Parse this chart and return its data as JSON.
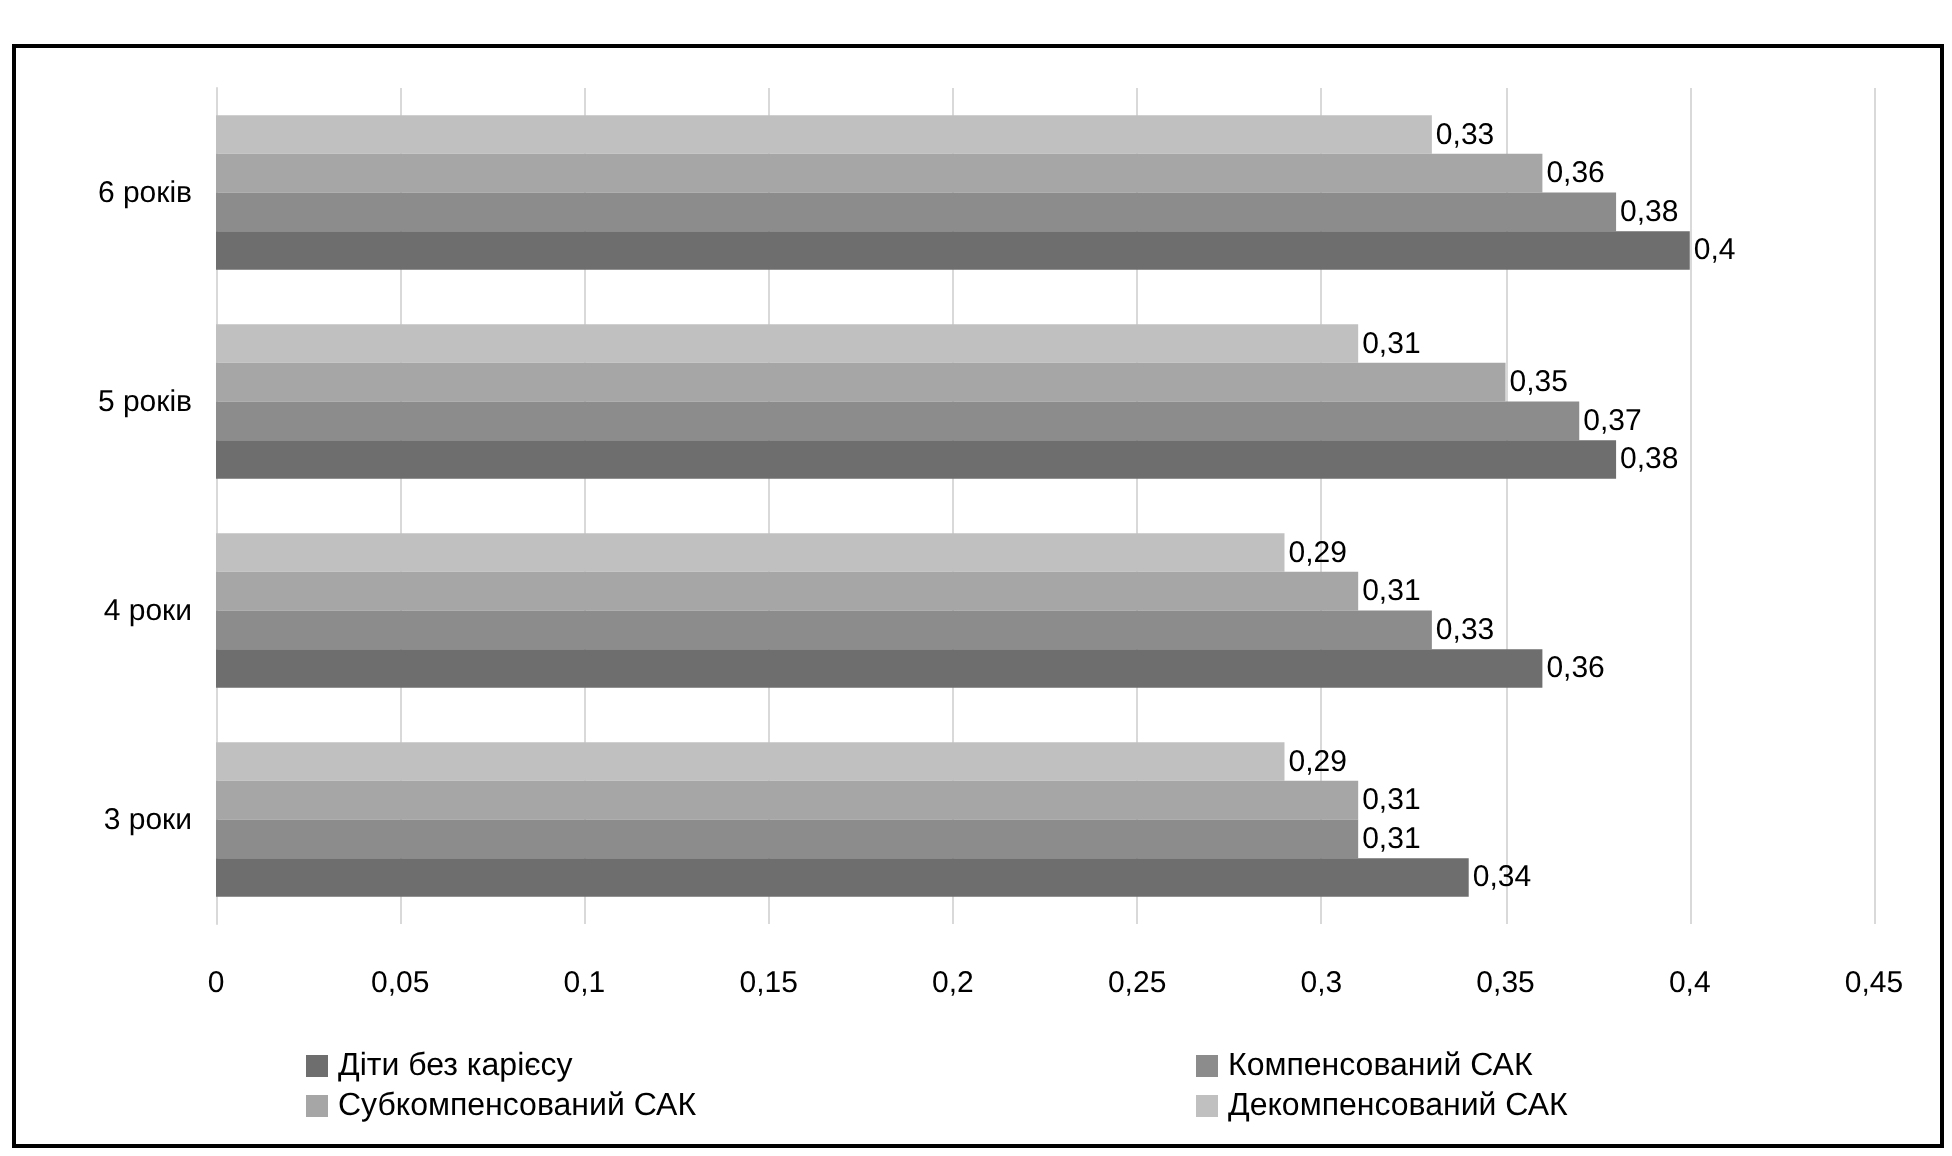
{
  "chart_data": {
    "type": "bar",
    "orientation": "horizontal",
    "categories": [
      "6 років",
      "5 років",
      "4 роки",
      "3 роки"
    ],
    "series": [
      {
        "name": "Діти без карієсу",
        "color": "#6e6e6e",
        "values": [
          0.4,
          0.38,
          0.36,
          0.34
        ],
        "value_labels": [
          "0,4",
          "0,38",
          "0,36",
          "0,34"
        ]
      },
      {
        "name": "Компенсований САК",
        "color": "#8c8c8c",
        "values": [
          0.38,
          0.37,
          0.33,
          0.31
        ],
        "value_labels": [
          "0,38",
          "0,37",
          "0,33",
          "0,31"
        ]
      },
      {
        "name": "Субкомпенсований САК",
        "color": "#a6a6a6",
        "values": [
          0.36,
          0.35,
          0.31,
          0.31
        ],
        "value_labels": [
          "0,36",
          "0,35",
          "0,31",
          "0,31"
        ]
      },
      {
        "name": "Декомпенсований САК",
        "color": "#c0c0c0",
        "values": [
          0.33,
          0.31,
          0.29,
          0.29
        ],
        "value_labels": [
          "0,33",
          "0,31",
          "0,29",
          "0,29"
        ]
      }
    ],
    "xlim": [
      0,
      0.45
    ],
    "xticks": [
      0,
      {
        "value": 0.05,
        "label": "0,05"
      },
      {
        "value": 0.1,
        "label": "0,1"
      },
      {
        "value": 0.15,
        "label": "0,15"
      },
      {
        "value": 0.2,
        "label": "0,2"
      },
      {
        "value": 0.25,
        "label": "0,25"
      },
      {
        "value": 0.3,
        "label": "0,3"
      },
      {
        "value": 0.35,
        "label": "0,35"
      },
      {
        "value": 0.4,
        "label": "0,4"
      },
      {
        "value": 0.45,
        "label": "0,45"
      }
    ],
    "grid": "x",
    "legend": "bottom"
  }
}
